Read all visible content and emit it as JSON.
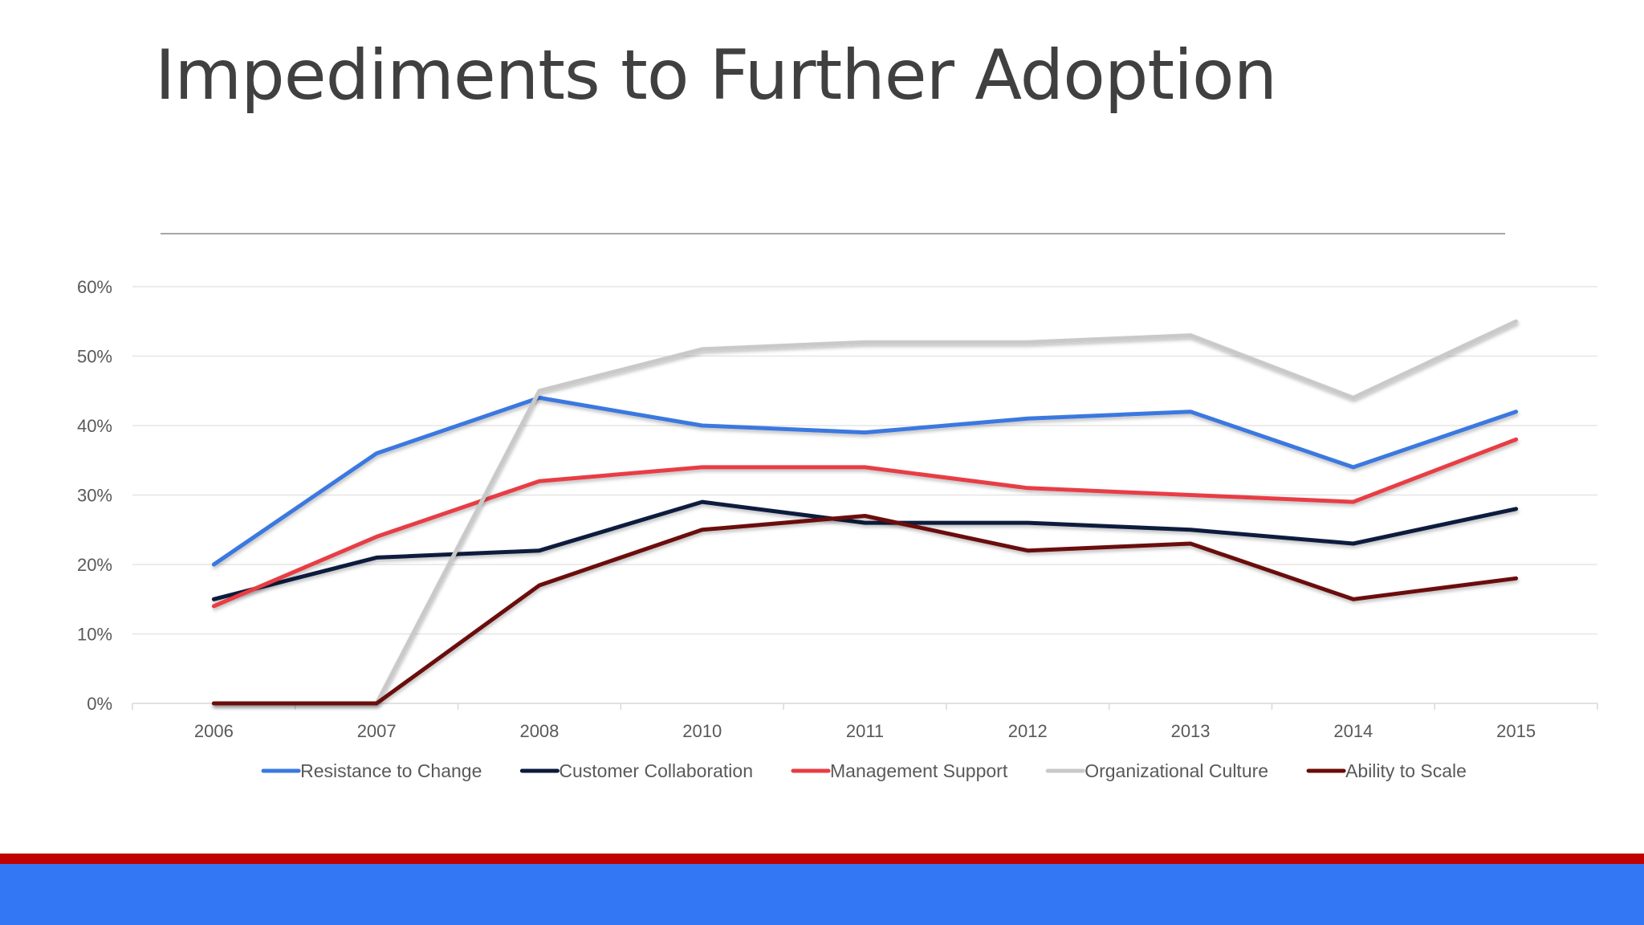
{
  "slide": {
    "title": "Impediments to Further Adoption"
  },
  "colors": {
    "title_text": "#404040",
    "footer_red": "#c00000",
    "footer_blue": "#3377f5",
    "gridline": "#e6e6e6",
    "axis_text": "#595959"
  },
  "chart_data": {
    "type": "line",
    "title": "",
    "xlabel": "",
    "ylabel": "",
    "categories": [
      "2006",
      "2007",
      "2008",
      "2010",
      "2011",
      "2012",
      "2013",
      "2014",
      "2015"
    ],
    "y_ticks": [
      "0%",
      "10%",
      "20%",
      "30%",
      "40%",
      "50%",
      "60%"
    ],
    "ylim": [
      0,
      60
    ],
    "grid": true,
    "legend_position": "bottom",
    "series": [
      {
        "name": "Resistance to Change",
        "color": "#3a78e0",
        "values": [
          20,
          36,
          44,
          40,
          39,
          41,
          42,
          34,
          42
        ]
      },
      {
        "name": "Customer Collaboration",
        "color": "#0b1a3d",
        "values": [
          15,
          21,
          22,
          29,
          26,
          26,
          25,
          23,
          28
        ]
      },
      {
        "name": "Management Support",
        "color": "#e83c44",
        "values": [
          14,
          24,
          32,
          34,
          34,
          31,
          30,
          29,
          38
        ]
      },
      {
        "name": "Organizational Culture",
        "color": "#c9c9c9",
        "values": [
          0,
          0,
          45,
          51,
          52,
          52,
          53,
          44,
          55
        ]
      },
      {
        "name": "Ability to Scale",
        "color": "#6b0a0a",
        "values": [
          0,
          0,
          17,
          25,
          27,
          22,
          23,
          15,
          18
        ]
      }
    ]
  }
}
